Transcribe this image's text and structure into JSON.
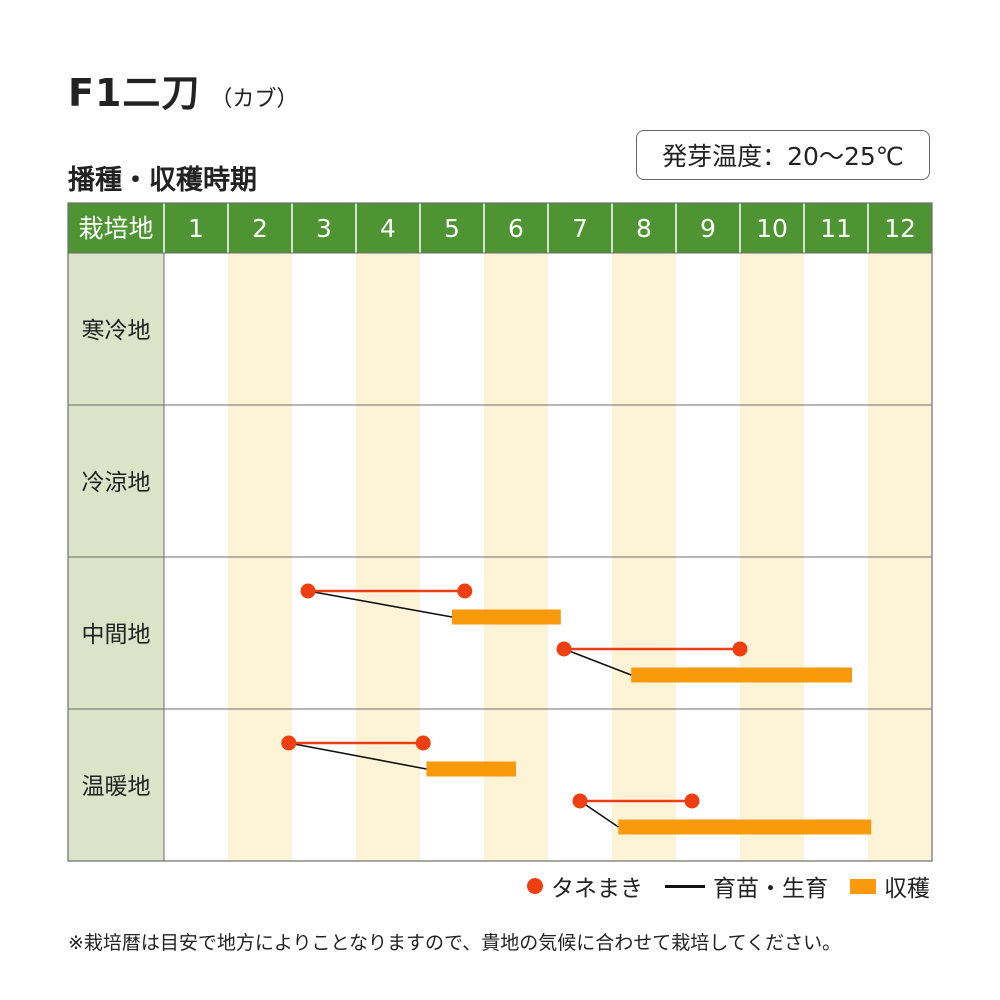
{
  "header": {
    "title": "F1二刀",
    "title_sub": "（カブ）",
    "subtitle": "播種・収穫時期",
    "germination": "発芽温度：20～25℃"
  },
  "colors": {
    "header_green": "#4e9432",
    "row_label_bg": "#dce3c9",
    "alt_month_bg": "#fdf4d8",
    "sowing_red": "#ee3f12",
    "harvest_orange": "#f99a0c",
    "seedling_black": "#111111"
  },
  "chart_data": {
    "type": "table",
    "corner_label": "栽培地",
    "months": [
      "1",
      "2",
      "3",
      "4",
      "5",
      "6",
      "7",
      "8",
      "9",
      "10",
      "11",
      "12"
    ],
    "regions": [
      {
        "name": "寒冷地",
        "schedules": []
      },
      {
        "name": "冷涼地",
        "schedules": []
      },
      {
        "name": "中間地",
        "schedules": [
          {
            "sow_start": 3.25,
            "sow_end": 5.7,
            "harvest_start": 5.5,
            "harvest_end": 7.2
          },
          {
            "sow_start": 7.25,
            "sow_end": 10.0,
            "harvest_start": 8.3,
            "harvest_end": 11.75
          }
        ]
      },
      {
        "name": "温暖地",
        "schedules": [
          {
            "sow_start": 2.95,
            "sow_end": 5.05,
            "harvest_start": 5.1,
            "harvest_end": 6.5
          },
          {
            "sow_start": 7.5,
            "sow_end": 9.25,
            "harvest_start": 8.1,
            "harvest_end": 12.05
          }
        ]
      }
    ]
  },
  "legend": {
    "sowing": "タネまき",
    "seedling": "育苗・生育",
    "harvest": "収穫"
  },
  "footnote": "※栽培暦は目安で地方によりことなりますので、貴地の気候に合わせて栽培してください。"
}
